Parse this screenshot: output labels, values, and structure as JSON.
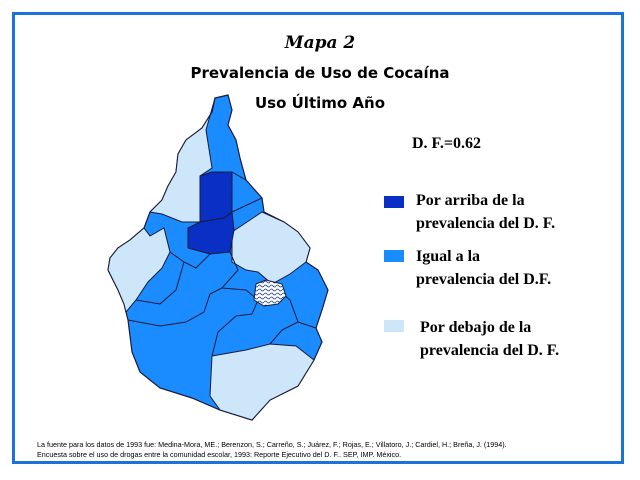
{
  "header": {
    "map_label": "Mapa 2",
    "title_line1": "Prevalencia de Uso de Cocaína",
    "title_line2": "Uso Último Año"
  },
  "df_value": "D. F.=0.62",
  "legend": [
    {
      "color": "#0a2fc4",
      "line1": "Por arriba de la",
      "line2": "prevalencia del D. F."
    },
    {
      "color": "#1a8cff",
      "line1": "Igual a la",
      "line2": "prevalencia del D.F."
    },
    {
      "color": "#cde6fa",
      "line1": "Por debajo de la",
      "line2": "prevalencia del D. F."
    }
  ],
  "colors": {
    "frame": "#1a73d9",
    "above": "#0a2fc4",
    "equal": "#1a8cff",
    "below": "#cde6fa",
    "border": "#1a1a3a"
  },
  "source": {
    "line1": "La fuente para los datos de 1993 fue: Medina-Mora, ME.; Berenzon, S.; Carreño, S.; Juárez, F.; Rojas, E.; Villatoro, J.; Cardiel, H.; Breña, J. (1994).",
    "line2": "Encuesta sobre el uso de drogas entre la comunidad escolar, 1993: Reporte Ejecutivo del D. F.. SEP, IMP. México."
  }
}
